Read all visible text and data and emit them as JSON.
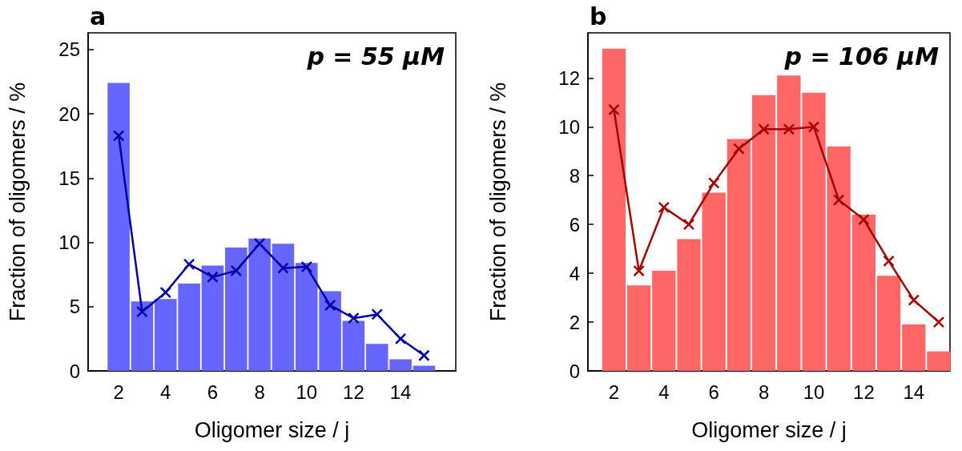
{
  "chart_data": [
    {
      "type": "bar",
      "title": "a",
      "xlabel": "Oligomer size / j",
      "ylabel": "Fraction of oligomers / %",
      "annotations": [
        "p = 55 μM"
      ],
      "x": [
        2,
        3,
        4,
        5,
        6,
        7,
        8,
        9,
        10,
        11,
        12,
        13,
        14,
        15
      ],
      "xlim": [
        0.7,
        16.35
      ],
      "xticks": [
        2,
        4,
        6,
        8,
        10,
        12,
        14
      ],
      "ylim": [
        0,
        26.3
      ],
      "yticks": [
        0,
        5,
        10,
        15,
        20,
        25
      ],
      "series": [
        {
          "color": "#6666ff",
          "values": [
            22.4,
            5.4,
            5.6,
            6.8,
            8.2,
            9.6,
            10.3,
            9.9,
            8.4,
            6.2,
            3.9,
            2.1,
            0.9,
            0.4
          ]
        },
        {
          "type": "line",
          "color": "#0000aa",
          "marker": "cross",
          "values": [
            18.3,
            4.6,
            6.1,
            8.3,
            7.3,
            7.8,
            9.9,
            8.0,
            8.1,
            5.1,
            4.1,
            4.4,
            2.5,
            1.2
          ]
        }
      ]
    },
    {
      "type": "bar",
      "title": "b",
      "xlabel": "Oligomer size / j",
      "ylabel": "Fraction of oligomers / %",
      "annotations": [
        "p = 106 μM"
      ],
      "x": [
        2,
        3,
        4,
        5,
        6,
        7,
        8,
        9,
        10,
        11,
        12,
        13,
        14,
        15
      ],
      "xlim": [
        0.96,
        15.45
      ],
      "xticks": [
        2,
        4,
        6,
        8,
        10,
        12,
        14
      ],
      "ylim": [
        0,
        13.85
      ],
      "yticks": [
        0,
        2,
        4,
        6,
        8,
        10,
        12
      ],
      "series": [
        {
          "color": "#ff6666",
          "values": [
            13.2,
            3.5,
            4.1,
            5.4,
            7.3,
            9.5,
            11.3,
            12.1,
            11.4,
            9.2,
            6.4,
            3.9,
            1.9,
            0.8
          ]
        },
        {
          "type": "line",
          "color": "#aa0000",
          "marker": "cross",
          "values": [
            10.7,
            4.1,
            6.7,
            6.0,
            7.7,
            9.1,
            9.9,
            9.9,
            10.0,
            7.0,
            6.2,
            4.5,
            2.9,
            2.0
          ]
        }
      ]
    }
  ]
}
